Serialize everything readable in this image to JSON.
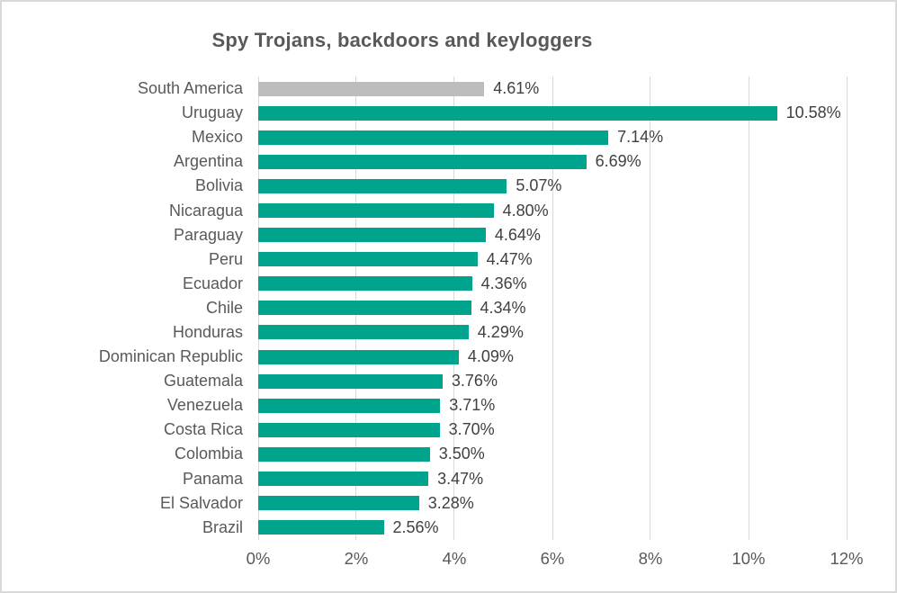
{
  "chart_data": {
    "type": "bar",
    "orientation": "horizontal",
    "title": "Spy Trojans, backdoors and keyloggers",
    "categories": [
      "South America",
      "Uruguay",
      "Mexico",
      "Argentina",
      "Bolivia",
      "Nicaragua",
      "Paraguay",
      "Peru",
      "Ecuador",
      "Chile",
      "Honduras",
      "Dominican Republic",
      "Guatemala",
      "Venezuela",
      "Costa Rica",
      "Colombia",
      "Panama",
      "El Salvador",
      "Brazil"
    ],
    "values": [
      4.61,
      10.58,
      7.14,
      6.69,
      5.07,
      4.8,
      4.64,
      4.47,
      4.36,
      4.34,
      4.29,
      4.09,
      3.76,
      3.71,
      3.7,
      3.5,
      3.47,
      3.28,
      2.56
    ],
    "value_labels": [
      "4.61%",
      "10.58%",
      "7.14%",
      "6.69%",
      "5.07%",
      "4.80%",
      "4.64%",
      "4.47%",
      "4.36%",
      "4.34%",
      "4.29%",
      "4.09%",
      "3.76%",
      "3.71%",
      "3.70%",
      "3.50%",
      "3.47%",
      "3.28%",
      "2.56%"
    ],
    "bar_colors": [
      "#bdbdbd",
      "#00a48c",
      "#00a48c",
      "#00a48c",
      "#00a48c",
      "#00a48c",
      "#00a48c",
      "#00a48c",
      "#00a48c",
      "#00a48c",
      "#00a48c",
      "#00a48c",
      "#00a48c",
      "#00a48c",
      "#00a48c",
      "#00a48c",
      "#00a48c",
      "#00a48c",
      "#00a48c"
    ],
    "bar_color_default": "#00a48c",
    "highlight_category": "South America",
    "highlight_color": "#bdbdbd",
    "xlim": [
      0,
      12
    ],
    "x_ticks": [
      "0%",
      "2%",
      "4%",
      "6%",
      "8%",
      "10%",
      "12%"
    ],
    "x_tick_values": [
      0,
      2,
      4,
      6,
      8,
      10,
      12
    ],
    "grid": true,
    "gridline_color": "#d9d9d9",
    "title_color": "#595959",
    "label_color": "#595959",
    "value_label_color": "#404040",
    "xlabel": "",
    "ylabel": ""
  }
}
